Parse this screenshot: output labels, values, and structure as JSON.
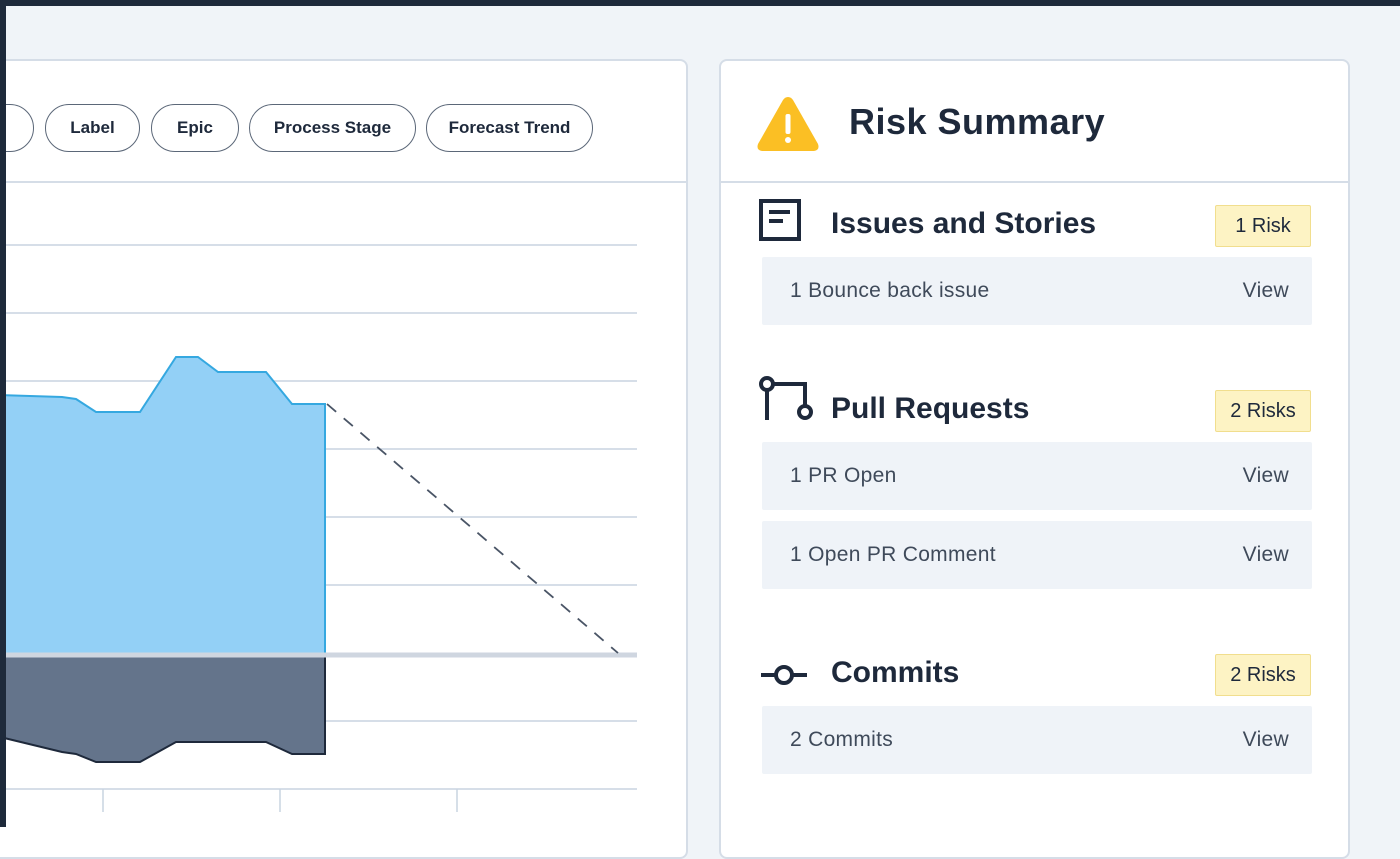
{
  "filters": {
    "chips": [
      "Label",
      "Epic",
      "Process Stage",
      "Forecast Trend"
    ]
  },
  "chart_data": {
    "type": "area",
    "series": [
      {
        "values": [
          8.5,
          8.4,
          8.3,
          8.3,
          8.3,
          8.3,
          8.9,
          8.9,
          8.7,
          8.7,
          8.7,
          8.2,
          8.2
        ]
      },
      {
        "values": [
          -1.4,
          -1.45,
          -1.55,
          -1.6,
          -1.6,
          -1.6,
          -1.3,
          -1.3,
          -1.3,
          -1.3,
          -1.3,
          -1.45,
          -1.45
        ]
      }
    ],
    "forecast": {
      "from": 8.2,
      "to": 0
    },
    "grid": true,
    "colors": {
      "positive": "#93d0f6",
      "positive_line": "#35a8e0",
      "negative": "#64748b",
      "negative_line": "#1e293b",
      "gridline": "#c9d4e1",
      "zero_line": "#cfd6e0"
    }
  },
  "risk": {
    "title": "Risk Summary",
    "header_icon": "warning-triangle-icon",
    "header_icon_color": "#fbbf24",
    "sections": [
      {
        "title": "Issues and Stories",
        "icon": "document-icon",
        "badge": "1 Risk",
        "items": [
          {
            "label": "1 Bounce back issue",
            "action": "View"
          }
        ]
      },
      {
        "title": "Pull Requests",
        "icon": "pull-request-icon",
        "badge": "2 Risks",
        "items": [
          {
            "label": "1 PR Open",
            "action": "View"
          },
          {
            "label": "1 Open PR Comment",
            "action": "View"
          }
        ]
      },
      {
        "title": "Commits",
        "icon": "commit-icon",
        "badge": "2 Risks",
        "items": [
          {
            "label": "2 Commits",
            "action": "View"
          }
        ]
      }
    ]
  }
}
